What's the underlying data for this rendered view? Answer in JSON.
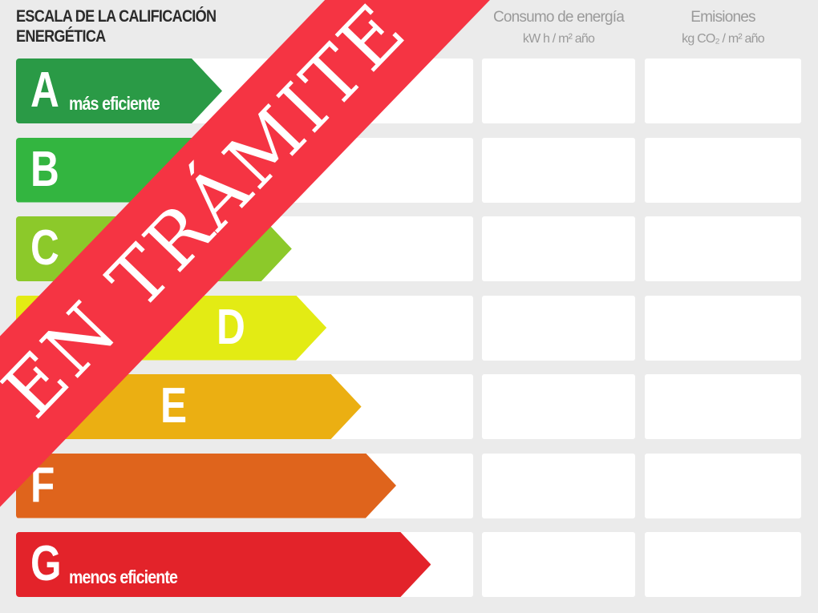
{
  "header": {
    "title": "ESCALA DE LA CALIFICACIÓN ENERGÉTICA",
    "columns": [
      {
        "label": "Consumo de energía",
        "unit": "kW h / m² año"
      },
      {
        "label": "Emisiones",
        "unit": "kg CO₂ / m² año"
      }
    ]
  },
  "ratings": [
    {
      "letter": "A",
      "caption": "más eficiente",
      "color": "#2a9a46"
    },
    {
      "letter": "B",
      "caption": "",
      "color": "#33b540"
    },
    {
      "letter": "C",
      "caption": "",
      "color": "#8cc92a"
    },
    {
      "letter": "D",
      "caption": "",
      "color": "#e3eb14"
    },
    {
      "letter": "E",
      "caption": "",
      "color": "#ebaf12"
    },
    {
      "letter": "F",
      "caption": "",
      "color": "#df641c"
    },
    {
      "letter": "G",
      "caption": "menos eficiente",
      "color": "#e3232a"
    }
  ],
  "banner": {
    "text": "EN TRÁMITE",
    "color": "#f53443"
  }
}
